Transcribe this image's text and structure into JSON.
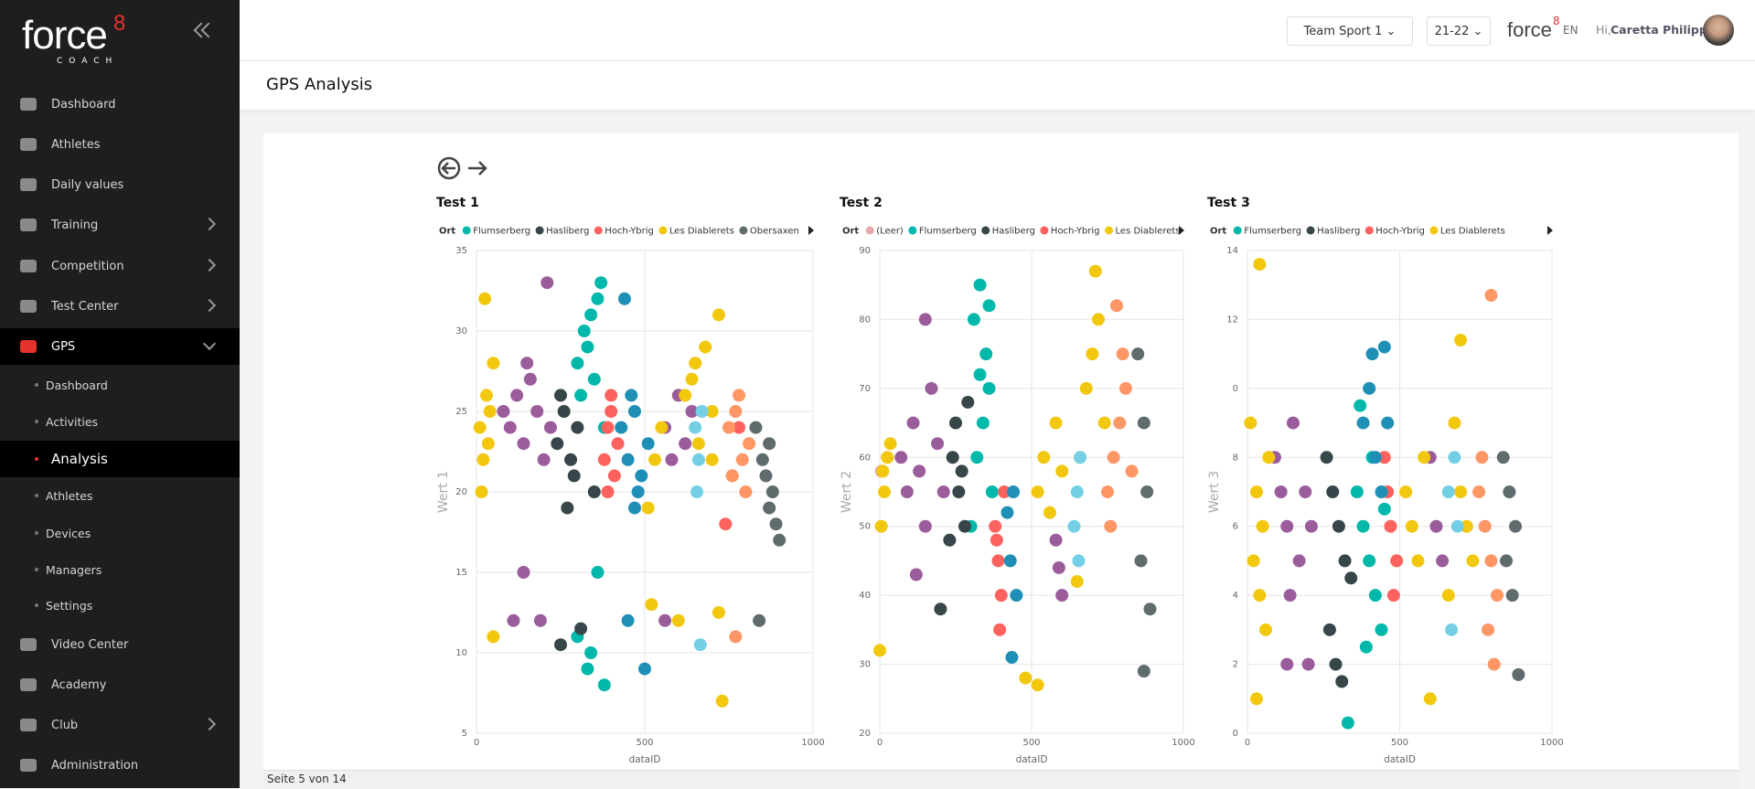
{
  "sidebar": {
    "logo": "force",
    "logo_sup": "8",
    "logo_sub": "COACH",
    "menu": [
      "Dashboard",
      "Athletes",
      "Daily values",
      "Training",
      "Competition",
      "Test Center",
      "GPS"
    ],
    "gps_menu": [
      "Dashboard",
      "Activities",
      "Analysis",
      "Athletes",
      "Devices",
      "Managers",
      "Settings"
    ],
    "bottom_menu": [
      "Video Center",
      "Academy",
      "Club",
      "Administration"
    ]
  },
  "header": {
    "team": "Team Sport 1",
    "season": "21-22",
    "brand": "force",
    "brand_sup": "8",
    "language": "EN",
    "greeting": "Hi,",
    "user": "Caretta Philipp"
  },
  "page_title": "GPS Analysis",
  "footer": "Seite 5 von 14",
  "chart_data": [
    {
      "type": "scatter",
      "title": "Test 1",
      "legend_title": "Ort",
      "x_label": "dataID",
      "y_label": "Wert 1",
      "xlim": [
        0,
        1000
      ],
      "xticks": [
        0,
        500,
        1000
      ],
      "ylim": [
        5,
        35
      ],
      "yticks": [
        5,
        10,
        15,
        20,
        25,
        30,
        35
      ],
      "grid": true,
      "series": [
        {
          "color": "#9b5c9b",
          "x": [
            80,
            100,
            120,
            140,
            160,
            180,
            200,
            220,
            150,
            210,
            560,
            580,
            600,
            620,
            640,
            110,
            140,
            190,
            560
          ],
          "values": [
            25,
            24,
            26,
            23,
            27,
            25,
            22,
            24,
            28,
            33,
            24,
            22,
            26,
            23,
            25,
            12,
            15,
            12,
            12
          ]
        },
        {
          "name": "Flumserberg",
          "color": "#01b8aa",
          "x": [
            300,
            320,
            340,
            360,
            350,
            330,
            310,
            370,
            380,
            300,
            340,
            360,
            380,
            330
          ],
          "values": [
            28,
            30,
            31,
            32,
            27,
            29,
            26,
            33,
            24,
            11,
            10,
            15,
            8,
            9
          ]
        },
        {
          "name": "Hasliberg",
          "color": "#374649",
          "x": [
            240,
            260,
            280,
            300,
            250,
            290,
            270,
            250,
            310,
            350
          ],
          "values": [
            23,
            25,
            22,
            24,
            26,
            21,
            19,
            10.5,
            11.5,
            20
          ]
        },
        {
          "name": "Hoch-Ybrig",
          "color": "#fd625e",
          "x": [
            380,
            390,
            400,
            410,
            420,
            400,
            390,
            740,
            760,
            780
          ],
          "values": [
            22,
            24,
            25,
            21,
            23,
            26,
            20,
            18,
            21,
            24
          ]
        },
        {
          "color": "#1f8fb5",
          "x": [
            430,
            450,
            470,
            490,
            510,
            460,
            480,
            440,
            470,
            450,
            500
          ],
          "values": [
            24,
            22,
            25,
            21,
            23,
            26,
            20,
            32,
            19,
            12,
            9
          ]
        },
        {
          "name": "Les Diablerets",
          "color": "#f2c80f",
          "x": [
            10,
            20,
            30,
            40,
            15,
            50,
            25,
            35,
            530,
            550,
            510,
            620,
            650,
            680,
            700,
            720,
            640,
            660,
            700,
            50,
            730,
            520,
            600,
            720
          ],
          "values": [
            24,
            22,
            26,
            25,
            20,
            28,
            32,
            23,
            22,
            24,
            19,
            26,
            28,
            29,
            25,
            31,
            27,
            23,
            22,
            11,
            7,
            13,
            12,
            12.5
          ]
        },
        {
          "color": "#74cfe6",
          "x": [
            650,
            660,
            670,
            655,
            665
          ],
          "values": [
            24,
            22,
            25,
            20,
            10.5
          ]
        },
        {
          "color": "#fe9666",
          "x": [
            750,
            770,
            790,
            810,
            780,
            760,
            800,
            770
          ],
          "values": [
            24,
            25,
            22,
            23,
            26,
            21,
            20,
            11
          ]
        },
        {
          "name": "Obersaxen",
          "color": "#5f6b6d",
          "x": [
            830,
            850,
            870,
            880,
            890,
            860,
            900,
            840,
            870
          ],
          "values": [
            24,
            22,
            23,
            20,
            18,
            21,
            17,
            12,
            19
          ]
        }
      ]
    },
    {
      "type": "scatter",
      "title": "Test 2",
      "legend_title": "Ort",
      "x_label": "dataID",
      "y_label": "Wert 2",
      "xlim": [
        0,
        1000
      ],
      "xticks": [
        0,
        500,
        1000
      ],
      "ylim": [
        20,
        90
      ],
      "yticks": [
        20,
        30,
        40,
        50,
        60,
        70,
        80,
        90
      ],
      "grid": true,
      "series": [
        {
          "name": "(Leer)",
          "color": "#e8a9a9",
          "x": [
            5
          ],
          "values": [
            58
          ]
        },
        {
          "color": "#9b5c9b",
          "x": [
            70,
            90,
            110,
            130,
            150,
            170,
            190,
            210,
            150,
            120,
            580,
            590,
            600
          ],
          "values": [
            60,
            55,
            65,
            58,
            50,
            70,
            62,
            55,
            80,
            43,
            48,
            44,
            40
          ]
        },
        {
          "name": "Flumserberg",
          "color": "#01b8aa",
          "x": [
            310,
            330,
            350,
            360,
            340,
            320,
            370,
            300,
            330,
            360
          ],
          "values": [
            80,
            85,
            75,
            70,
            65,
            60,
            55,
            50,
            72,
            82
          ]
        },
        {
          "name": "Hasliberg",
          "color": "#374649",
          "x": [
            240,
            260,
            280,
            250,
            270,
            290,
            230,
            200
          ],
          "values": [
            60,
            55,
            50,
            65,
            58,
            68,
            48,
            38
          ]
        },
        {
          "name": "Hoch-Ybrig",
          "color": "#fd625e",
          "x": [
            380,
            390,
            400,
            410,
            395,
            385
          ],
          "values": [
            50,
            45,
            40,
            55,
            35,
            48
          ]
        },
        {
          "color": "#1f8fb5",
          "x": [
            420,
            430,
            440,
            450,
            435
          ],
          "values": [
            52,
            45,
            55,
            40,
            31
          ]
        },
        {
          "name": "Les Diablerets",
          "color": "#f2c80f",
          "x": [
            5,
            15,
            25,
            35,
            10,
            520,
            540,
            560,
            580,
            600,
            660,
            680,
            700,
            720,
            740,
            710,
            0,
            480,
            520,
            650
          ],
          "values": [
            50,
            55,
            60,
            62,
            58,
            55,
            60,
            52,
            65,
            58,
            60,
            70,
            75,
            80,
            65,
            87,
            32,
            28,
            27,
            42
          ]
        },
        {
          "color": "#74cfe6",
          "x": [
            640,
            650,
            660,
            655
          ],
          "values": [
            50,
            55,
            60,
            45
          ]
        },
        {
          "color": "#fe9666",
          "x": [
            750,
            770,
            790,
            810,
            830,
            780,
            760,
            800
          ],
          "values": [
            55,
            60,
            65,
            70,
            58,
            82,
            50,
            75
          ]
        },
        {
          "color": "#5f6b6d",
          "x": [
            850,
            870,
            880,
            860,
            890,
            870
          ],
          "values": [
            75,
            65,
            55,
            45,
            38,
            29
          ]
        }
      ]
    },
    {
      "type": "scatter",
      "title": "Test 3",
      "legend_title": "Ort",
      "x_label": "dataID",
      "y_label": "Wert 3",
      "xlim": [
        0,
        1000
      ],
      "xticks": [
        0,
        500,
        1000
      ],
      "ylim": [
        0,
        14
      ],
      "yticks": [
        0,
        2,
        4,
        6,
        8,
        {
          "value": 10,
          "label": "0"
        },
        12,
        14
      ],
      "grid": true,
      "series": [
        {
          "color": "#9b5c9b",
          "x": [
            90,
            110,
            130,
            150,
            170,
            190,
            210,
            140,
            600,
            620,
            640,
            130,
            200
          ],
          "values": [
            8,
            7,
            6,
            9,
            5,
            7,
            6,
            4,
            8,
            6,
            5,
            2,
            2
          ]
        },
        {
          "name": "Flumserberg",
          "color": "#01b8aa",
          "x": [
            360,
            380,
            400,
            420,
            440,
            390,
            410,
            370,
            450,
            330
          ],
          "values": [
            7,
            6,
            5,
            4,
            3,
            2.5,
            8,
            9.5,
            6.5,
            0.3
          ]
        },
        {
          "name": "Hasliberg",
          "color": "#374649",
          "x": [
            260,
            280,
            300,
            320,
            340,
            270,
            310,
            290
          ],
          "values": [
            8,
            7,
            6,
            5,
            4.5,
            3,
            1.5,
            2
          ]
        },
        {
          "name": "Hoch-Ybrig",
          "color": "#fd625e",
          "x": [
            450,
            470,
            490,
            460,
            480
          ],
          "values": [
            8,
            6,
            5,
            7,
            4
          ]
        },
        {
          "color": "#1f8fb5",
          "x": [
            380,
            400,
            420,
            440,
            460,
            410,
            450
          ],
          "values": [
            9,
            10,
            8,
            7,
            9,
            11,
            11.2
          ]
        },
        {
          "name": "Les Diablerets",
          "color": "#f2c80f",
          "x": [
            10,
            30,
            50,
            70,
            20,
            40,
            60,
            520,
            540,
            560,
            580,
            680,
            700,
            720,
            660,
            740,
            40,
            30,
            700,
            600
          ],
          "values": [
            9,
            7,
            6,
            8,
            5,
            4,
            3,
            7,
            6,
            5,
            8,
            9,
            7,
            6,
            4,
            5,
            13.6,
            1,
            11.4,
            1
          ]
        },
        {
          "color": "#74cfe6",
          "x": [
            660,
            680,
            690,
            670
          ],
          "values": [
            7,
            8,
            6,
            3
          ]
        },
        {
          "color": "#fe9666",
          "x": [
            760,
            780,
            800,
            820,
            790,
            770,
            810,
            800
          ],
          "values": [
            7,
            6,
            5,
            4,
            3,
            8,
            2,
            12.7
          ]
        },
        {
          "color": "#5f6b6d",
          "x": [
            840,
            860,
            880,
            850,
            870,
            890
          ],
          "values": [
            8,
            7,
            6,
            5,
            4,
            1.7
          ]
        }
      ]
    }
  ]
}
